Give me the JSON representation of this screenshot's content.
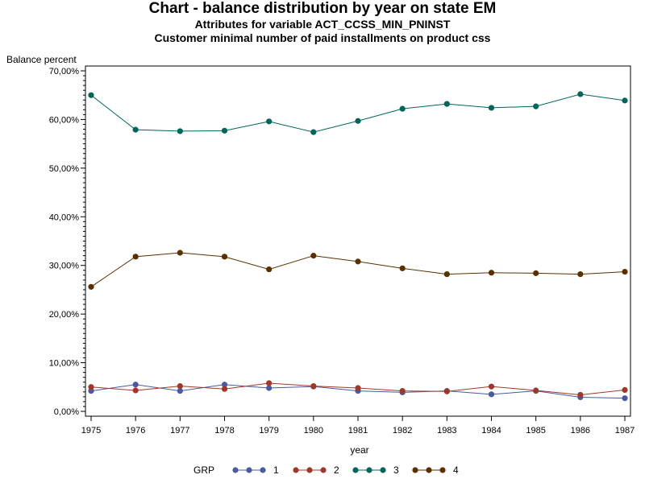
{
  "chart_data": {
    "type": "line",
    "title": "Chart - balance distribution by year on state EM",
    "subtitle1": "Attributes for variable ACT_CCSS_MIN_PNINST",
    "subtitle2": "Customer minimal number of paid installments on product css",
    "xlabel": "year",
    "ylabel": "Balance percent",
    "x": [
      1975,
      1976,
      1977,
      1978,
      1979,
      1980,
      1981,
      1982,
      1983,
      1984,
      1985,
      1986,
      1987
    ],
    "x_tick_labels": [
      "1975",
      "1976",
      "1977",
      "1978",
      "1979",
      "1980",
      "1981",
      "1982",
      "1983",
      "1984",
      "1985",
      "1986",
      "1987"
    ],
    "ylim": [
      0,
      70
    ],
    "y_ticks": [
      0,
      10,
      20,
      30,
      40,
      50,
      60,
      70
    ],
    "y_tick_labels": [
      "0,00%",
      "10,00%",
      "20,00%",
      "30,00%",
      "40,00%",
      "50,00%",
      "60,00%",
      "70,00%"
    ],
    "grid": false,
    "legend_title": "GRP",
    "legend_position": "bottom",
    "series": [
      {
        "name": "1",
        "color": "#4a5aa0",
        "values": [
          4.2,
          5.5,
          4.2,
          5.5,
          4.8,
          5.1,
          4.2,
          3.9,
          4.2,
          3.5,
          4.2,
          2.9,
          2.7
        ]
      },
      {
        "name": "2",
        "color": "#a0382a",
        "values": [
          5.0,
          4.3,
          5.2,
          4.6,
          5.8,
          5.2,
          4.8,
          4.2,
          4.1,
          5.1,
          4.3,
          3.4,
          4.4
        ]
      },
      {
        "name": "3",
        "color": "#00665a",
        "values": [
          65.0,
          57.9,
          57.6,
          57.7,
          59.6,
          57.4,
          59.7,
          62.2,
          63.2,
          62.4,
          62.7,
          65.2,
          63.9
        ]
      },
      {
        "name": "4",
        "color": "#5a3000",
        "values": [
          25.6,
          31.8,
          32.6,
          31.8,
          29.2,
          32.0,
          30.8,
          29.4,
          28.2,
          28.5,
          28.4,
          28.2,
          28.7
        ]
      }
    ]
  }
}
